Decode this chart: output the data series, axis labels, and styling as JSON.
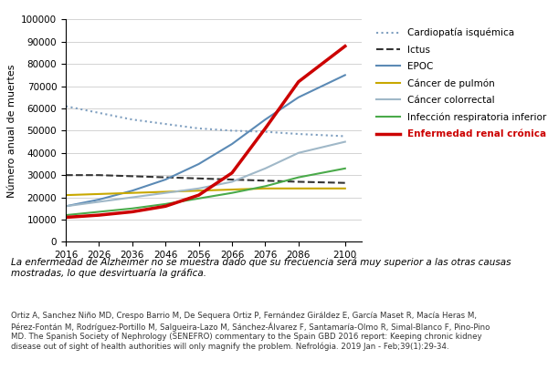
{
  "years": [
    2016,
    2026,
    2036,
    2046,
    2056,
    2066,
    2076,
    2086,
    2100
  ],
  "cardiopatia": [
    61000,
    58000,
    55000,
    53000,
    51000,
    50000,
    49500,
    48500,
    47500
  ],
  "ictus": [
    30000,
    30000,
    29500,
    29000,
    28500,
    28000,
    27500,
    27000,
    26500
  ],
  "epoc": [
    16000,
    19000,
    23000,
    28000,
    35000,
    44000,
    55000,
    65000,
    75000
  ],
  "cancer_pulmon": [
    21000,
    21500,
    22000,
    22500,
    23000,
    23500,
    24000,
    24000,
    24000
  ],
  "cancer_colorrectal": [
    16000,
    18000,
    20000,
    22000,
    24000,
    27000,
    33000,
    40000,
    45000
  ],
  "infeccion_resp": [
    12000,
    13500,
    15000,
    17000,
    19500,
    22000,
    25000,
    29000,
    33000
  ],
  "enfermedad_renal": [
    11000,
    12000,
    13500,
    16000,
    21000,
    31000,
    51000,
    72000,
    88000
  ],
  "ylabel": "Número anual de muertes",
  "ylim": [
    0,
    100000
  ],
  "yticks": [
    0,
    10000,
    20000,
    30000,
    40000,
    50000,
    60000,
    70000,
    80000,
    90000,
    100000
  ],
  "legend_labels": [
    "Cardiopatía isquémica",
    "Ictus",
    "EPOC",
    "Cáncer de pulmón",
    "Cáncer colorrectal",
    "Infección respiratoria inferior",
    "Enfermedad renal crónica"
  ],
  "colors": {
    "cardiopatia": "#7f9fc0",
    "ictus": "#333333",
    "epoc": "#5b8ab5",
    "cancer_pulmon": "#c8a800",
    "cancer_colorrectal": "#a0b8c8",
    "infeccion_resp": "#4aaa4a",
    "enfermedad_renal": "#cc0000"
  },
  "footnote1": "La enfermedad de Alzheimer no se muestra dado que su frecuencia será muy superior a las otras causas\nmostradas, lo que desvirtuaría la gráfica.",
  "footnote2": "Ortiz A, Sanchez Niño MD, Crespo Barrio M, De Sequera Ortiz P, Fernández Giráldez E, García Maset R, Macía Heras M,\nPérez-Fontán M, Rodríguez-Portillo M, Salgueira-Lazo M, Sánchez-Álvarez F, Santamaría-Olmo R, Simal-Blanco F, Pino-Pino\nMD. The Spanish Society of Nephrology (SENEFRO) commentary to the Spain GBD 2016 report: Keeping chronic kidney\ndisease out of sight of health authorities will only magnify the problem. Nefrológia. 2019 Jan - Feb;39(1):29-34."
}
